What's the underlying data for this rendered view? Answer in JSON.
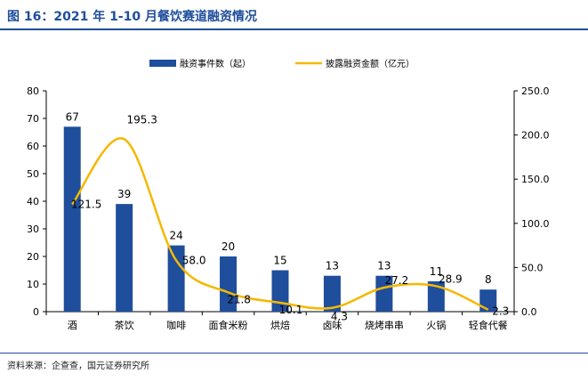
{
  "header": {
    "title": "图 16：2021 年 1-10 月餐饮赛道融资情况"
  },
  "footer": {
    "source": "资料来源：企查查，国元证券研究所"
  },
  "colors": {
    "bar": "#1f4e9c",
    "line": "#f5b800",
    "title": "#1f4e9c"
  },
  "chart_data": {
    "type": "bar+line",
    "categories": [
      "酒",
      "茶饮",
      "咖啡",
      "面食米粉",
      "烘焙",
      "卤味",
      "烧烤串串",
      "火锅",
      "轻食代餐"
    ],
    "series": [
      {
        "name": "融资事件数（起）",
        "type": "bar",
        "axis": "left",
        "values": [
          67,
          39,
          24,
          20,
          15,
          13,
          13,
          11,
          8
        ]
      },
      {
        "name": "披露融资金额（亿元）",
        "type": "line",
        "axis": "right",
        "smooth": true,
        "values": [
          121.5,
          195.3,
          58.0,
          21.8,
          10.1,
          4.3,
          27.2,
          28.9,
          2.3
        ]
      }
    ],
    "y_left": {
      "min": 0,
      "max": 80,
      "ticks": [
        "0",
        "10",
        "20",
        "30",
        "40",
        "50",
        "60",
        "70",
        "80"
      ]
    },
    "y_right": {
      "min": 0,
      "max": 250,
      "ticks": [
        "0.0",
        "50.0",
        "100.0",
        "150.0",
        "200.0",
        "250.0"
      ]
    },
    "bar_labels": [
      "67",
      "39",
      "24",
      "20",
      "15",
      "13",
      "13",
      "11",
      "8"
    ],
    "line_labels": [
      "121.5",
      "195.3",
      "58.0",
      "21.8",
      "10.1",
      "4.3",
      "27.2",
      "28.9",
      "2.3"
    ],
    "legend_position": "top",
    "grid": false
  }
}
